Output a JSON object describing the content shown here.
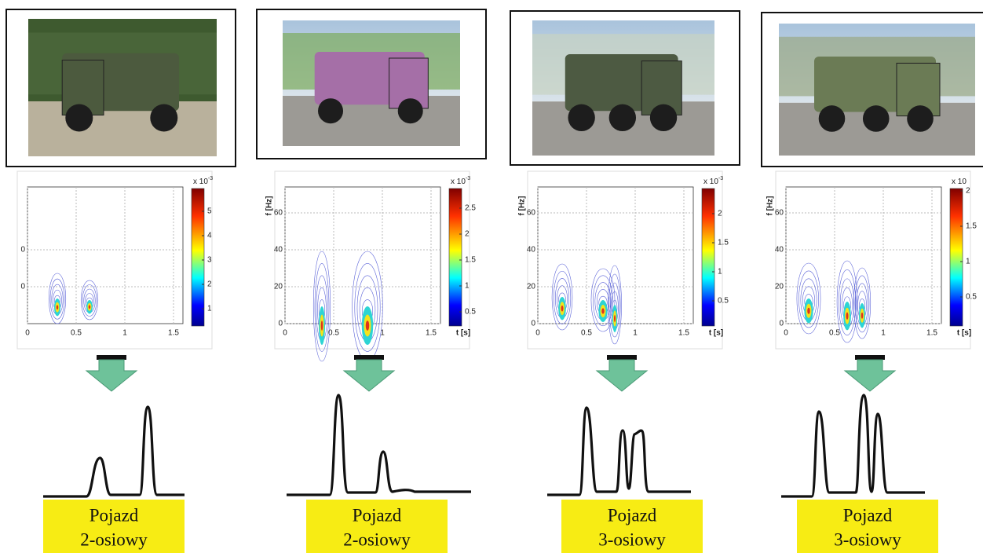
{
  "panels": [
    {
      "plot": {
        "yticks": [
          "0",
          "0"
        ],
        "xticks": [
          0,
          0.5,
          1,
          1.5
        ],
        "colorbar_exponent": "x 10",
        "colorbar_exponent_power": "-3",
        "colorbar_ticks": [
          1,
          2,
          3,
          4,
          5
        ]
      },
      "label": [
        "Pojazd",
        "2-osiowy"
      ]
    },
    {
      "plot": {
        "y_label": "f [Hz]",
        "x_label": "t [s]",
        "yticks": [
          0,
          20,
          40,
          60
        ],
        "xticks": [
          0,
          0.5,
          1,
          1.5
        ],
        "colorbar_exponent": "x 10",
        "colorbar_exponent_power": "-3",
        "colorbar_ticks": [
          0.5,
          1,
          1.5,
          2,
          2.5
        ]
      },
      "label": [
        "Pojazd",
        "2-osiowy"
      ]
    },
    {
      "plot": {
        "y_label": "f [Hz]",
        "x_label": "t [s]",
        "yticks": [
          0,
          20,
          40,
          60
        ],
        "xticks": [
          0,
          0.5,
          1,
          1.5
        ],
        "colorbar_exponent": "x 10",
        "colorbar_exponent_power": "-3",
        "colorbar_ticks": [
          0.5,
          1,
          1.5,
          2
        ]
      },
      "label": [
        "Pojazd",
        "3-osiowy"
      ]
    },
    {
      "plot": {
        "y_label": "f [Hz]",
        "x_label": "t [s]",
        "yticks": [
          0,
          20,
          40,
          60
        ],
        "xticks": [
          0,
          0.5,
          1,
          1.5
        ],
        "colorbar_exponent": "x 10",
        "colorbar_ticks": [
          0.5,
          1,
          1.5,
          2
        ]
      },
      "label": [
        "Pojazd",
        "3-osiowy"
      ]
    }
  ]
}
